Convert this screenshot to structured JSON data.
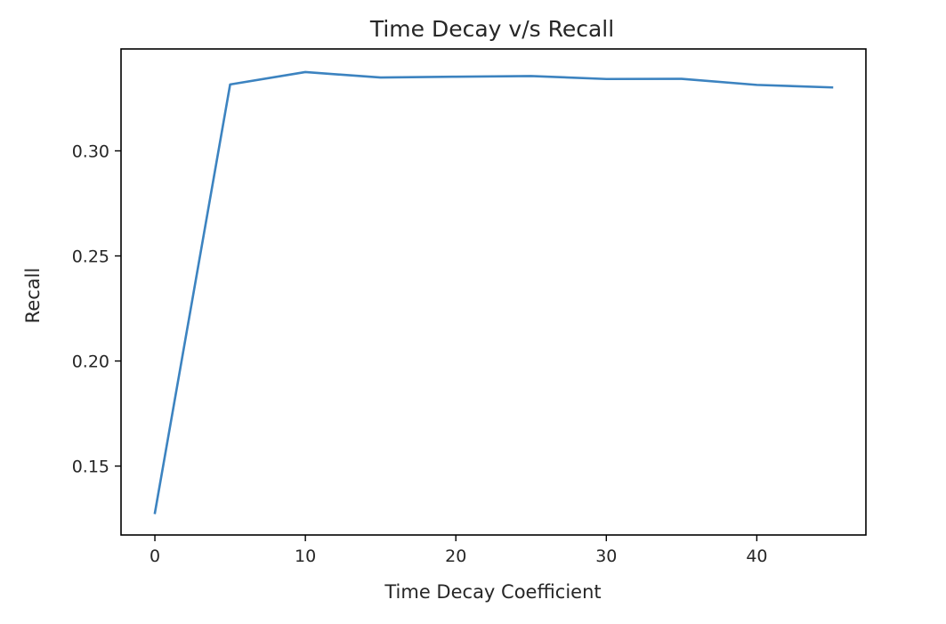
{
  "chart_data": {
    "type": "line",
    "title": "Time Decay v/s Recall",
    "xlabel": "Time Decay Coefficient",
    "ylabel": "Recall",
    "xlim": [
      -2.25,
      47.25
    ],
    "ylim": [
      0.1172,
      0.3485
    ],
    "xticks": [
      0,
      10,
      20,
      30,
      40
    ],
    "xtick_labels": [
      "0",
      "10",
      "20",
      "30",
      "40"
    ],
    "yticks": [
      0.15,
      0.2,
      0.25,
      0.3
    ],
    "ytick_labels": [
      "0.15",
      "0.20",
      "0.25",
      "0.30"
    ],
    "grid": false,
    "legend": "none",
    "line_color": "#3c83c0",
    "series": [
      {
        "x": [
          0,
          5,
          10,
          15,
          20,
          25,
          30,
          35,
          40,
          45
        ],
        "y": [
          0.1277,
          0.3316,
          0.3375,
          0.3349,
          0.3353,
          0.3356,
          0.3342,
          0.3343,
          0.3314,
          0.3302
        ]
      }
    ]
  }
}
